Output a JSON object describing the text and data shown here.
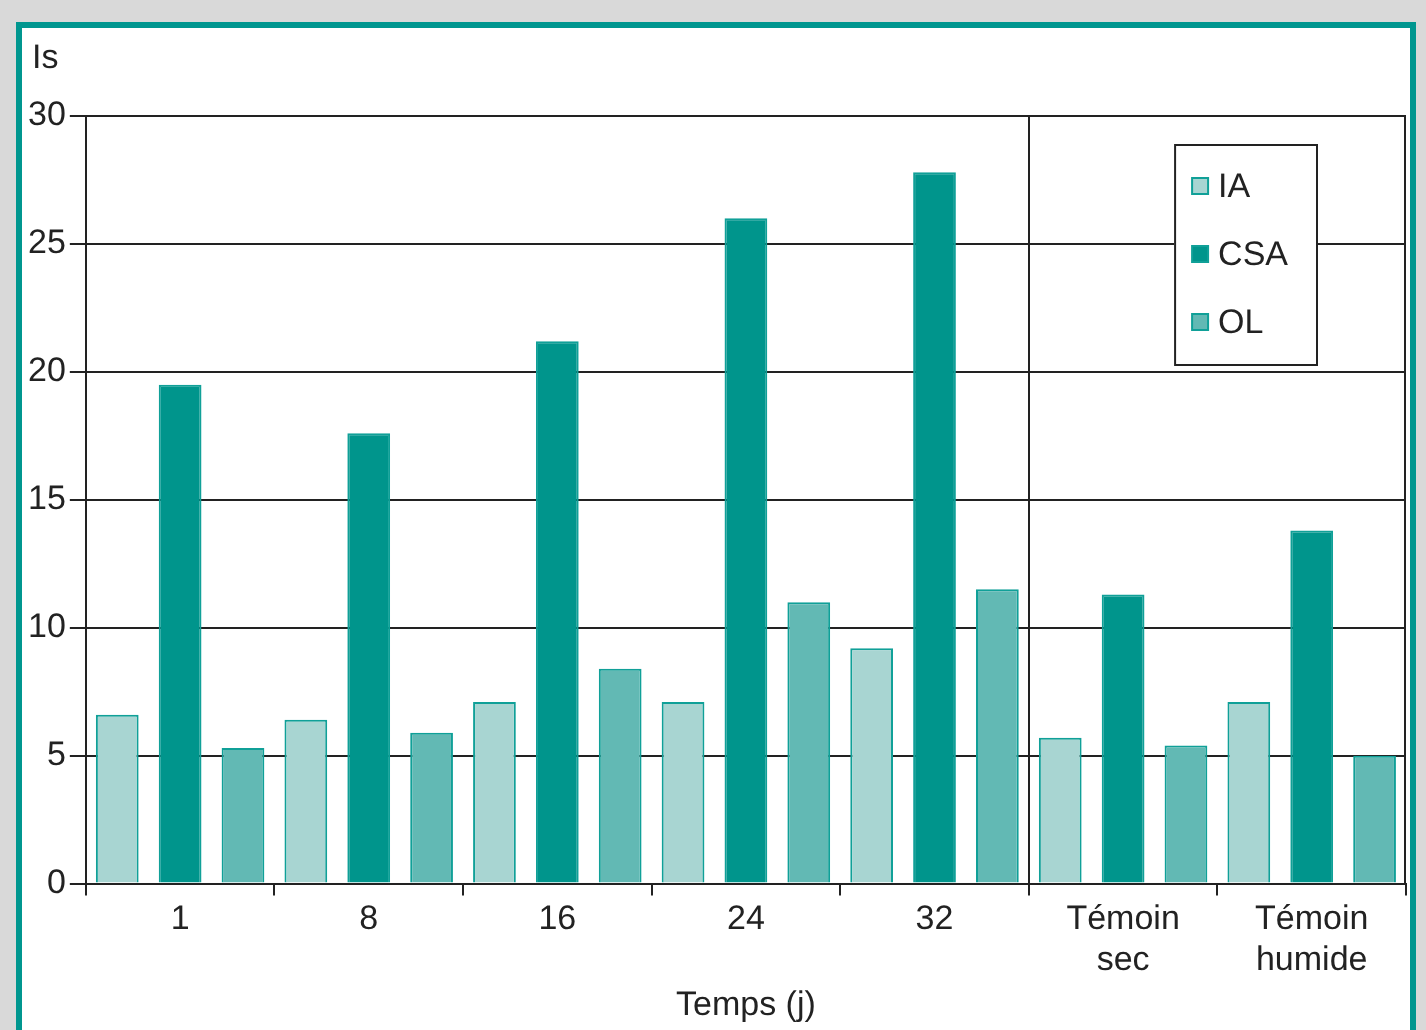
{
  "chart_data": {
    "type": "bar",
    "ylabel": "Is",
    "xlabel": "Temps (j)",
    "categories": [
      "1",
      "8",
      "16",
      "24",
      "32",
      "Témoin sec",
      "Témoin humide"
    ],
    "series": [
      {
        "name": "IA",
        "color": "#a8d5d2",
        "values": [
          6.6,
          6.4,
          7.1,
          7.1,
          9.2,
          5.7,
          7.1
        ]
      },
      {
        "name": "CSA",
        "color": "#00958c",
        "values": [
          19.5,
          17.6,
          21.2,
          26.0,
          27.8,
          11.3,
          13.8
        ]
      },
      {
        "name": "OL",
        "color": "#62b9b4",
        "values": [
          5.3,
          5.9,
          8.4,
          11.0,
          11.5,
          5.4,
          5.0
        ]
      }
    ],
    "ylim": [
      0,
      30
    ],
    "yticks": [
      0,
      5,
      10,
      15,
      20,
      25,
      30
    ],
    "grid": "y",
    "legend": "top right"
  }
}
